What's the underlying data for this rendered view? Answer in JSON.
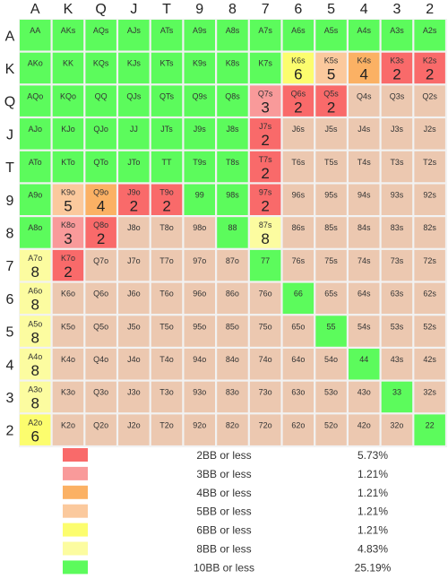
{
  "chart_data": {
    "type": "heatmap",
    "col_labels": [
      "A",
      "K",
      "Q",
      "J",
      "T",
      "9",
      "8",
      "7",
      "6",
      "5",
      "4",
      "3",
      "2"
    ],
    "row_labels": [
      "A",
      "K",
      "Q",
      "J",
      "T",
      "9",
      "8",
      "7",
      "6",
      "5",
      "4",
      "3",
      "2"
    ],
    "cells": [
      [
        {
          "hand": "AA",
          "cat": "10"
        },
        {
          "hand": "AKs",
          "cat": "10"
        },
        {
          "hand": "AQs",
          "cat": "10"
        },
        {
          "hand": "AJs",
          "cat": "10"
        },
        {
          "hand": "ATs",
          "cat": "10"
        },
        {
          "hand": "A9s",
          "cat": "10"
        },
        {
          "hand": "A8s",
          "cat": "10"
        },
        {
          "hand": "A7s",
          "cat": "10"
        },
        {
          "hand": "A6s",
          "cat": "10"
        },
        {
          "hand": "A5s",
          "cat": "10"
        },
        {
          "hand": "A4s",
          "cat": "10"
        },
        {
          "hand": "A3s",
          "cat": "10"
        },
        {
          "hand": "A2s",
          "cat": "10"
        }
      ],
      [
        {
          "hand": "AKo",
          "cat": "10"
        },
        {
          "hand": "KK",
          "cat": "10"
        },
        {
          "hand": "KQs",
          "cat": "10"
        },
        {
          "hand": "KJs",
          "cat": "10"
        },
        {
          "hand": "KTs",
          "cat": "10"
        },
        {
          "hand": "K9s",
          "cat": "10"
        },
        {
          "hand": "K8s",
          "cat": "10"
        },
        {
          "hand": "K7s",
          "cat": "10"
        },
        {
          "hand": "K6s",
          "cat": "6",
          "num": "6"
        },
        {
          "hand": "K5s",
          "cat": "5",
          "num": "5"
        },
        {
          "hand": "K4s",
          "cat": "4",
          "num": "4"
        },
        {
          "hand": "K3s",
          "cat": "2",
          "num": "2"
        },
        {
          "hand": "K2s",
          "cat": "2",
          "num": "2"
        }
      ],
      [
        {
          "hand": "AQo",
          "cat": "10"
        },
        {
          "hand": "KQo",
          "cat": "10"
        },
        {
          "hand": "QQ",
          "cat": "10"
        },
        {
          "hand": "QJs",
          "cat": "10"
        },
        {
          "hand": "QTs",
          "cat": "10"
        },
        {
          "hand": "Q9s",
          "cat": "10"
        },
        {
          "hand": "Q8s",
          "cat": "10"
        },
        {
          "hand": "Q7s",
          "cat": "3",
          "num": "3"
        },
        {
          "hand": "Q6s",
          "cat": "2",
          "num": "2"
        },
        {
          "hand": "Q5s",
          "cat": "2",
          "num": "2"
        },
        {
          "hand": "Q4s",
          "cat": "none"
        },
        {
          "hand": "Q3s",
          "cat": "none"
        },
        {
          "hand": "Q2s",
          "cat": "none"
        }
      ],
      [
        {
          "hand": "AJo",
          "cat": "10"
        },
        {
          "hand": "KJo",
          "cat": "10"
        },
        {
          "hand": "QJo",
          "cat": "10"
        },
        {
          "hand": "JJ",
          "cat": "10"
        },
        {
          "hand": "JTs",
          "cat": "10"
        },
        {
          "hand": "J9s",
          "cat": "10"
        },
        {
          "hand": "J8s",
          "cat": "10"
        },
        {
          "hand": "J7s",
          "cat": "2",
          "num": "2"
        },
        {
          "hand": "J6s",
          "cat": "none"
        },
        {
          "hand": "J5s",
          "cat": "none"
        },
        {
          "hand": "J4s",
          "cat": "none"
        },
        {
          "hand": "J3s",
          "cat": "none"
        },
        {
          "hand": "J2s",
          "cat": "none"
        }
      ],
      [
        {
          "hand": "ATo",
          "cat": "10"
        },
        {
          "hand": "KTo",
          "cat": "10"
        },
        {
          "hand": "QTo",
          "cat": "10"
        },
        {
          "hand": "JTo",
          "cat": "10"
        },
        {
          "hand": "TT",
          "cat": "10"
        },
        {
          "hand": "T9s",
          "cat": "10"
        },
        {
          "hand": "T8s",
          "cat": "10"
        },
        {
          "hand": "T7s",
          "cat": "2",
          "num": "2"
        },
        {
          "hand": "T6s",
          "cat": "none"
        },
        {
          "hand": "T5s",
          "cat": "none"
        },
        {
          "hand": "T4s",
          "cat": "none"
        },
        {
          "hand": "T3s",
          "cat": "none"
        },
        {
          "hand": "T2s",
          "cat": "none"
        }
      ],
      [
        {
          "hand": "A9o",
          "cat": "10"
        },
        {
          "hand": "K9o",
          "cat": "5",
          "num": "5"
        },
        {
          "hand": "Q9o",
          "cat": "4",
          "num": "4"
        },
        {
          "hand": "J9o",
          "cat": "2",
          "num": "2"
        },
        {
          "hand": "T9o",
          "cat": "2",
          "num": "2"
        },
        {
          "hand": "99",
          "cat": "10"
        },
        {
          "hand": "98s",
          "cat": "10"
        },
        {
          "hand": "97s",
          "cat": "2",
          "num": "2"
        },
        {
          "hand": "96s",
          "cat": "none"
        },
        {
          "hand": "95s",
          "cat": "none"
        },
        {
          "hand": "94s",
          "cat": "none"
        },
        {
          "hand": "93s",
          "cat": "none"
        },
        {
          "hand": "92s",
          "cat": "none"
        }
      ],
      [
        {
          "hand": "A8o",
          "cat": "10"
        },
        {
          "hand": "K8o",
          "cat": "3",
          "num": "3"
        },
        {
          "hand": "Q8o",
          "cat": "2",
          "num": "2"
        },
        {
          "hand": "J8o",
          "cat": "none"
        },
        {
          "hand": "T8o",
          "cat": "none"
        },
        {
          "hand": "98o",
          "cat": "none"
        },
        {
          "hand": "88",
          "cat": "10"
        },
        {
          "hand": "87s",
          "cat": "8",
          "num": "8"
        },
        {
          "hand": "86s",
          "cat": "none"
        },
        {
          "hand": "85s",
          "cat": "none"
        },
        {
          "hand": "84s",
          "cat": "none"
        },
        {
          "hand": "83s",
          "cat": "none"
        },
        {
          "hand": "82s",
          "cat": "none"
        }
      ],
      [
        {
          "hand": "A7o",
          "cat": "8",
          "num": "8"
        },
        {
          "hand": "K7o",
          "cat": "2",
          "num": "2"
        },
        {
          "hand": "Q7o",
          "cat": "none"
        },
        {
          "hand": "J7o",
          "cat": "none"
        },
        {
          "hand": "T7o",
          "cat": "none"
        },
        {
          "hand": "97o",
          "cat": "none"
        },
        {
          "hand": "87o",
          "cat": "none"
        },
        {
          "hand": "77",
          "cat": "10"
        },
        {
          "hand": "76s",
          "cat": "none"
        },
        {
          "hand": "75s",
          "cat": "none"
        },
        {
          "hand": "74s",
          "cat": "none"
        },
        {
          "hand": "73s",
          "cat": "none"
        },
        {
          "hand": "72s",
          "cat": "none"
        }
      ],
      [
        {
          "hand": "A6o",
          "cat": "8",
          "num": "8"
        },
        {
          "hand": "K6o",
          "cat": "none"
        },
        {
          "hand": "Q6o",
          "cat": "none"
        },
        {
          "hand": "J6o",
          "cat": "none"
        },
        {
          "hand": "T6o",
          "cat": "none"
        },
        {
          "hand": "96o",
          "cat": "none"
        },
        {
          "hand": "86o",
          "cat": "none"
        },
        {
          "hand": "76o",
          "cat": "none"
        },
        {
          "hand": "66",
          "cat": "10"
        },
        {
          "hand": "65s",
          "cat": "none"
        },
        {
          "hand": "64s",
          "cat": "none"
        },
        {
          "hand": "63s",
          "cat": "none"
        },
        {
          "hand": "62s",
          "cat": "none"
        }
      ],
      [
        {
          "hand": "A5o",
          "cat": "8",
          "num": "8"
        },
        {
          "hand": "K5o",
          "cat": "none"
        },
        {
          "hand": "Q5o",
          "cat": "none"
        },
        {
          "hand": "J5o",
          "cat": "none"
        },
        {
          "hand": "T5o",
          "cat": "none"
        },
        {
          "hand": "95o",
          "cat": "none"
        },
        {
          "hand": "85o",
          "cat": "none"
        },
        {
          "hand": "75o",
          "cat": "none"
        },
        {
          "hand": "65o",
          "cat": "none"
        },
        {
          "hand": "55",
          "cat": "10"
        },
        {
          "hand": "54s",
          "cat": "none"
        },
        {
          "hand": "53s",
          "cat": "none"
        },
        {
          "hand": "52s",
          "cat": "none"
        }
      ],
      [
        {
          "hand": "A4o",
          "cat": "8",
          "num": "8"
        },
        {
          "hand": "K4o",
          "cat": "none"
        },
        {
          "hand": "Q4o",
          "cat": "none"
        },
        {
          "hand": "J4o",
          "cat": "none"
        },
        {
          "hand": "T4o",
          "cat": "none"
        },
        {
          "hand": "94o",
          "cat": "none"
        },
        {
          "hand": "84o",
          "cat": "none"
        },
        {
          "hand": "74o",
          "cat": "none"
        },
        {
          "hand": "64o",
          "cat": "none"
        },
        {
          "hand": "54o",
          "cat": "none"
        },
        {
          "hand": "44",
          "cat": "10"
        },
        {
          "hand": "43s",
          "cat": "none"
        },
        {
          "hand": "42s",
          "cat": "none"
        }
      ],
      [
        {
          "hand": "A3o",
          "cat": "8",
          "num": "8"
        },
        {
          "hand": "K3o",
          "cat": "none"
        },
        {
          "hand": "Q3o",
          "cat": "none"
        },
        {
          "hand": "J3o",
          "cat": "none"
        },
        {
          "hand": "T3o",
          "cat": "none"
        },
        {
          "hand": "93o",
          "cat": "none"
        },
        {
          "hand": "83o",
          "cat": "none"
        },
        {
          "hand": "73o",
          "cat": "none"
        },
        {
          "hand": "63o",
          "cat": "none"
        },
        {
          "hand": "53o",
          "cat": "none"
        },
        {
          "hand": "43o",
          "cat": "none"
        },
        {
          "hand": "33",
          "cat": "10"
        },
        {
          "hand": "32s",
          "cat": "none"
        }
      ],
      [
        {
          "hand": "A2o",
          "cat": "6",
          "num": "6"
        },
        {
          "hand": "K2o",
          "cat": "none"
        },
        {
          "hand": "Q2o",
          "cat": "none"
        },
        {
          "hand": "J2o",
          "cat": "none"
        },
        {
          "hand": "T2o",
          "cat": "none"
        },
        {
          "hand": "92o",
          "cat": "none"
        },
        {
          "hand": "82o",
          "cat": "none"
        },
        {
          "hand": "72o",
          "cat": "none"
        },
        {
          "hand": "62o",
          "cat": "none"
        },
        {
          "hand": "52o",
          "cat": "none"
        },
        {
          "hand": "42o",
          "cat": "none"
        },
        {
          "hand": "32o",
          "cat": "none"
        },
        {
          "hand": "22",
          "cat": "10"
        }
      ]
    ],
    "legend": [
      {
        "cat": "2",
        "label": "2BB or less",
        "pct": "5.73%"
      },
      {
        "cat": "3",
        "label": "3BB or less",
        "pct": "1.21%"
      },
      {
        "cat": "4",
        "label": "4BB or less",
        "pct": "1.21%"
      },
      {
        "cat": "5",
        "label": "5BB or less",
        "pct": "1.21%"
      },
      {
        "cat": "6",
        "label": "6BB or less",
        "pct": "1.21%"
      },
      {
        "cat": "8",
        "label": "8BB or less",
        "pct": "4.83%"
      },
      {
        "cat": "10",
        "label": "10BB or less",
        "pct": "25.19%"
      }
    ],
    "colors": {
      "2": "#f96a6a",
      "3": "#f99a9a",
      "4": "#fbb164",
      "5": "#fbc99d",
      "6": "#fcfd6e",
      "8": "#fcfca0",
      "10": "#5cfb5c",
      "none": "#ecc8b0"
    }
  }
}
